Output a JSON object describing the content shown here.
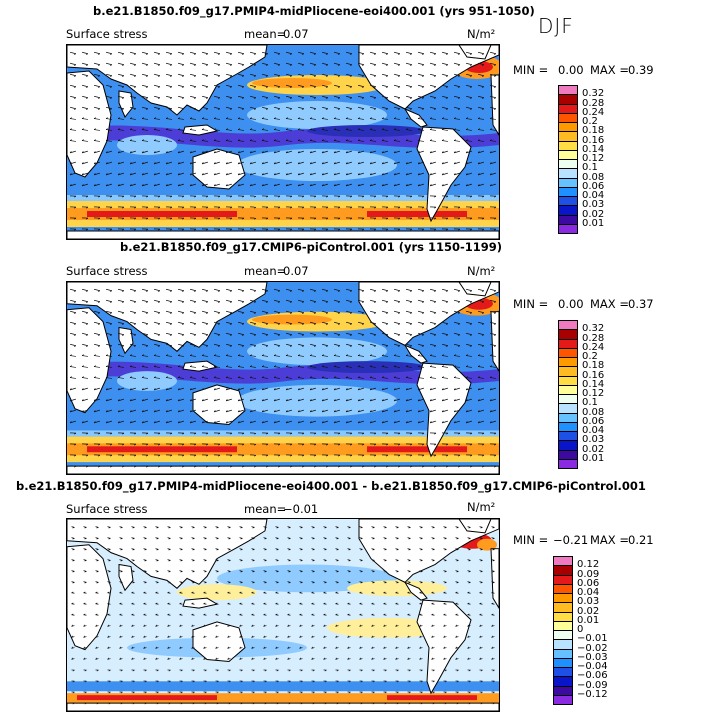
{
  "season": "DJF",
  "panels": [
    {
      "title": "b.e21.B1850.f09_g17.PMIP4-midPliocene-eoi400.001 (yrs 951-1050)",
      "variable": "Surface stress",
      "mean_label": "mean=",
      "mean_value": "0.07",
      "units": "N/m²",
      "min_label": "MIN =",
      "min_value": "0.00",
      "max_label": "MAX =",
      "max_value": "0.39",
      "colorbar": {
        "labels": [
          "0.32",
          "0.28",
          "0.24",
          "0.2",
          "0.18",
          "0.16",
          "0.14",
          "0.12",
          "0.1",
          "0.08",
          "0.06",
          "0.04",
          "0.03",
          "0.02",
          "0.01"
        ],
        "colors": [
          "#f07ac0",
          "#a80000",
          "#e41a1a",
          "#ff5500",
          "#ff9900",
          "#ffbb22",
          "#ffdd44",
          "#ffff99",
          "#eefff0",
          "#b8e2ff",
          "#66c2ff",
          "#1e90ff",
          "#1e50e6",
          "#0a14c8",
          "#3c0aa0",
          "#8a2be2"
        ]
      }
    },
    {
      "title": "b.e21.B1850.f09_g17.CMIP6-piControl.001 (yrs 1150-1199)",
      "variable": "Surface stress",
      "mean_label": "mean=",
      "mean_value": "0.07",
      "units": "N/m²",
      "min_label": "MIN =",
      "min_value": "0.00",
      "max_label": "MAX =",
      "max_value": "0.37",
      "colorbar": {
        "labels": [
          "0.32",
          "0.28",
          "0.24",
          "0.2",
          "0.18",
          "0.16",
          "0.14",
          "0.12",
          "0.1",
          "0.08",
          "0.06",
          "0.04",
          "0.03",
          "0.02",
          "0.01"
        ],
        "colors": [
          "#f07ac0",
          "#a80000",
          "#e41a1a",
          "#ff5500",
          "#ff9900",
          "#ffbb22",
          "#ffdd44",
          "#ffff99",
          "#eefff0",
          "#b8e2ff",
          "#66c2ff",
          "#1e90ff",
          "#1e50e6",
          "#0a14c8",
          "#3c0aa0",
          "#8a2be2"
        ]
      }
    },
    {
      "title": "b.e21.B1850.f09_g17.PMIP4-midPliocene-eoi400.001 - b.e21.B1850.f09_g17.CMIP6-piControl.001",
      "variable": "Surface stress",
      "mean_label": "mean=",
      "mean_value": "−0.01",
      "units": "N/m²",
      "min_label": "MIN =",
      "min_value": "−0.21",
      "max_label": "MAX =",
      "max_value": "0.21",
      "colorbar": {
        "labels": [
          "0.12",
          "0.09",
          "0.06",
          "0.04",
          "0.03",
          "0.02",
          "0.01",
          "0",
          "−0.01",
          "−0.02",
          "−0.03",
          "−0.04",
          "−0.06",
          "−0.09",
          "−0.12"
        ],
        "colors": [
          "#f07ac0",
          "#a80000",
          "#e41a1a",
          "#ff5500",
          "#ff9900",
          "#ffbb22",
          "#ffdd44",
          "#ffff99",
          "#eefff0",
          "#b8e2ff",
          "#66c2ff",
          "#1e90ff",
          "#1e50e6",
          "#0a14c8",
          "#3c0aa0",
          "#8a2be2"
        ]
      }
    }
  ]
}
